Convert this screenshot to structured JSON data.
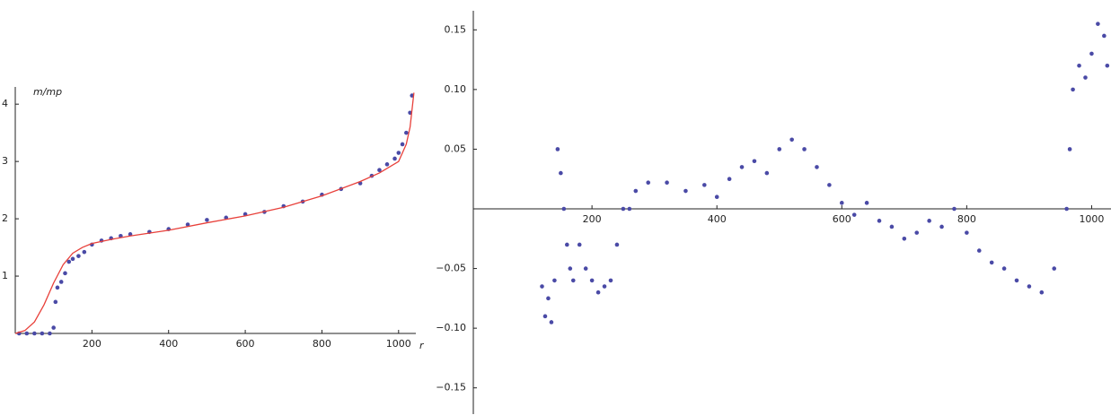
{
  "chart_data": [
    {
      "type": "scatter",
      "ylabel": "m/mp",
      "xlabel": "r",
      "xlim": [
        0,
        1045
      ],
      "ylim": [
        0,
        4.3
      ],
      "xticks": [
        200,
        400,
        600,
        800,
        1000
      ],
      "yticks": [
        1,
        2,
        3,
        4
      ],
      "series": [
        {
          "style": "points",
          "color": "#4a4aa6",
          "x": [
            10,
            30,
            50,
            70,
            90,
            100,
            105,
            110,
            120,
            130,
            140,
            150,
            165,
            180,
            200,
            225,
            250,
            275,
            300,
            350,
            400,
            450,
            500,
            550,
            600,
            650,
            700,
            750,
            800,
            850,
            900,
            930,
            950,
            970,
            990,
            1000,
            1010,
            1020,
            1030,
            1035
          ],
          "values": [
            0,
            0,
            0,
            0,
            0,
            0.1,
            0.55,
            0.8,
            0.9,
            1.05,
            1.25,
            1.3,
            1.35,
            1.42,
            1.55,
            1.62,
            1.66,
            1.7,
            1.73,
            1.77,
            1.82,
            1.9,
            1.98,
            2.02,
            2.08,
            2.12,
            2.22,
            2.3,
            2.42,
            2.52,
            2.62,
            2.75,
            2.85,
            2.95,
            3.05,
            3.15,
            3.3,
            3.5,
            3.85,
            4.15
          ]
        },
        {
          "style": "line",
          "color": "#e8403a",
          "x": [
            0,
            25,
            50,
            75,
            100,
            125,
            150,
            175,
            200,
            250,
            300,
            400,
            500,
            600,
            700,
            800,
            900,
            950,
            1000,
            1020,
            1030,
            1040
          ],
          "values": [
            0,
            0.05,
            0.2,
            0.5,
            0.88,
            1.2,
            1.4,
            1.5,
            1.57,
            1.64,
            1.7,
            1.8,
            1.93,
            2.05,
            2.2,
            2.4,
            2.65,
            2.8,
            3.0,
            3.3,
            3.6,
            4.2
          ]
        }
      ]
    },
    {
      "type": "scatter",
      "xlim": [
        10,
        1031
      ],
      "ylim": [
        -0.172,
        0.166
      ],
      "xticks": [
        200,
        400,
        600,
        800,
        1000
      ],
      "yticks": [
        {
          "value": -0.15,
          "label": "−0.15"
        },
        {
          "value": -0.1,
          "label": "−0.10"
        },
        {
          "value": -0.05,
          "label": "−0.05"
        },
        0.05,
        {
          "value": 0.1,
          "label": "0.10"
        },
        0.15
      ],
      "series": [
        {
          "style": "points",
          "color": "#4a4aa6",
          "x": [
            120,
            125,
            130,
            135,
            140,
            145,
            150,
            155,
            160,
            165,
            170,
            180,
            190,
            200,
            210,
            220,
            230,
            240,
            250,
            260,
            270,
            290,
            320,
            350,
            380,
            400,
            420,
            440,
            460,
            480,
            500,
            520,
            540,
            560,
            580,
            600,
            620,
            640,
            660,
            680,
            700,
            720,
            740,
            760,
            780,
            800,
            820,
            840,
            860,
            880,
            900,
            920,
            940,
            960,
            965,
            970,
            980,
            990,
            1000,
            1010,
            1020,
            1025
          ],
          "values": [
            -0.065,
            -0.09,
            -0.075,
            -0.095,
            -0.06,
            0.05,
            0.03,
            0.0,
            -0.03,
            -0.05,
            -0.06,
            -0.03,
            -0.05,
            -0.06,
            -0.07,
            -0.065,
            -0.06,
            -0.03,
            0.0,
            0.0,
            0.015,
            0.022,
            0.022,
            0.015,
            0.02,
            0.01,
            0.025,
            0.035,
            0.04,
            0.03,
            0.05,
            0.058,
            0.05,
            0.035,
            0.02,
            0.005,
            -0.005,
            0.005,
            -0.01,
            -0.015,
            -0.025,
            -0.02,
            -0.01,
            -0.015,
            0.0,
            -0.02,
            -0.035,
            -0.045,
            -0.05,
            -0.06,
            -0.065,
            -0.07,
            -0.05,
            0.0,
            0.05,
            0.1,
            0.12,
            0.11,
            0.13,
            0.155,
            0.145,
            0.12
          ]
        }
      ]
    }
  ]
}
